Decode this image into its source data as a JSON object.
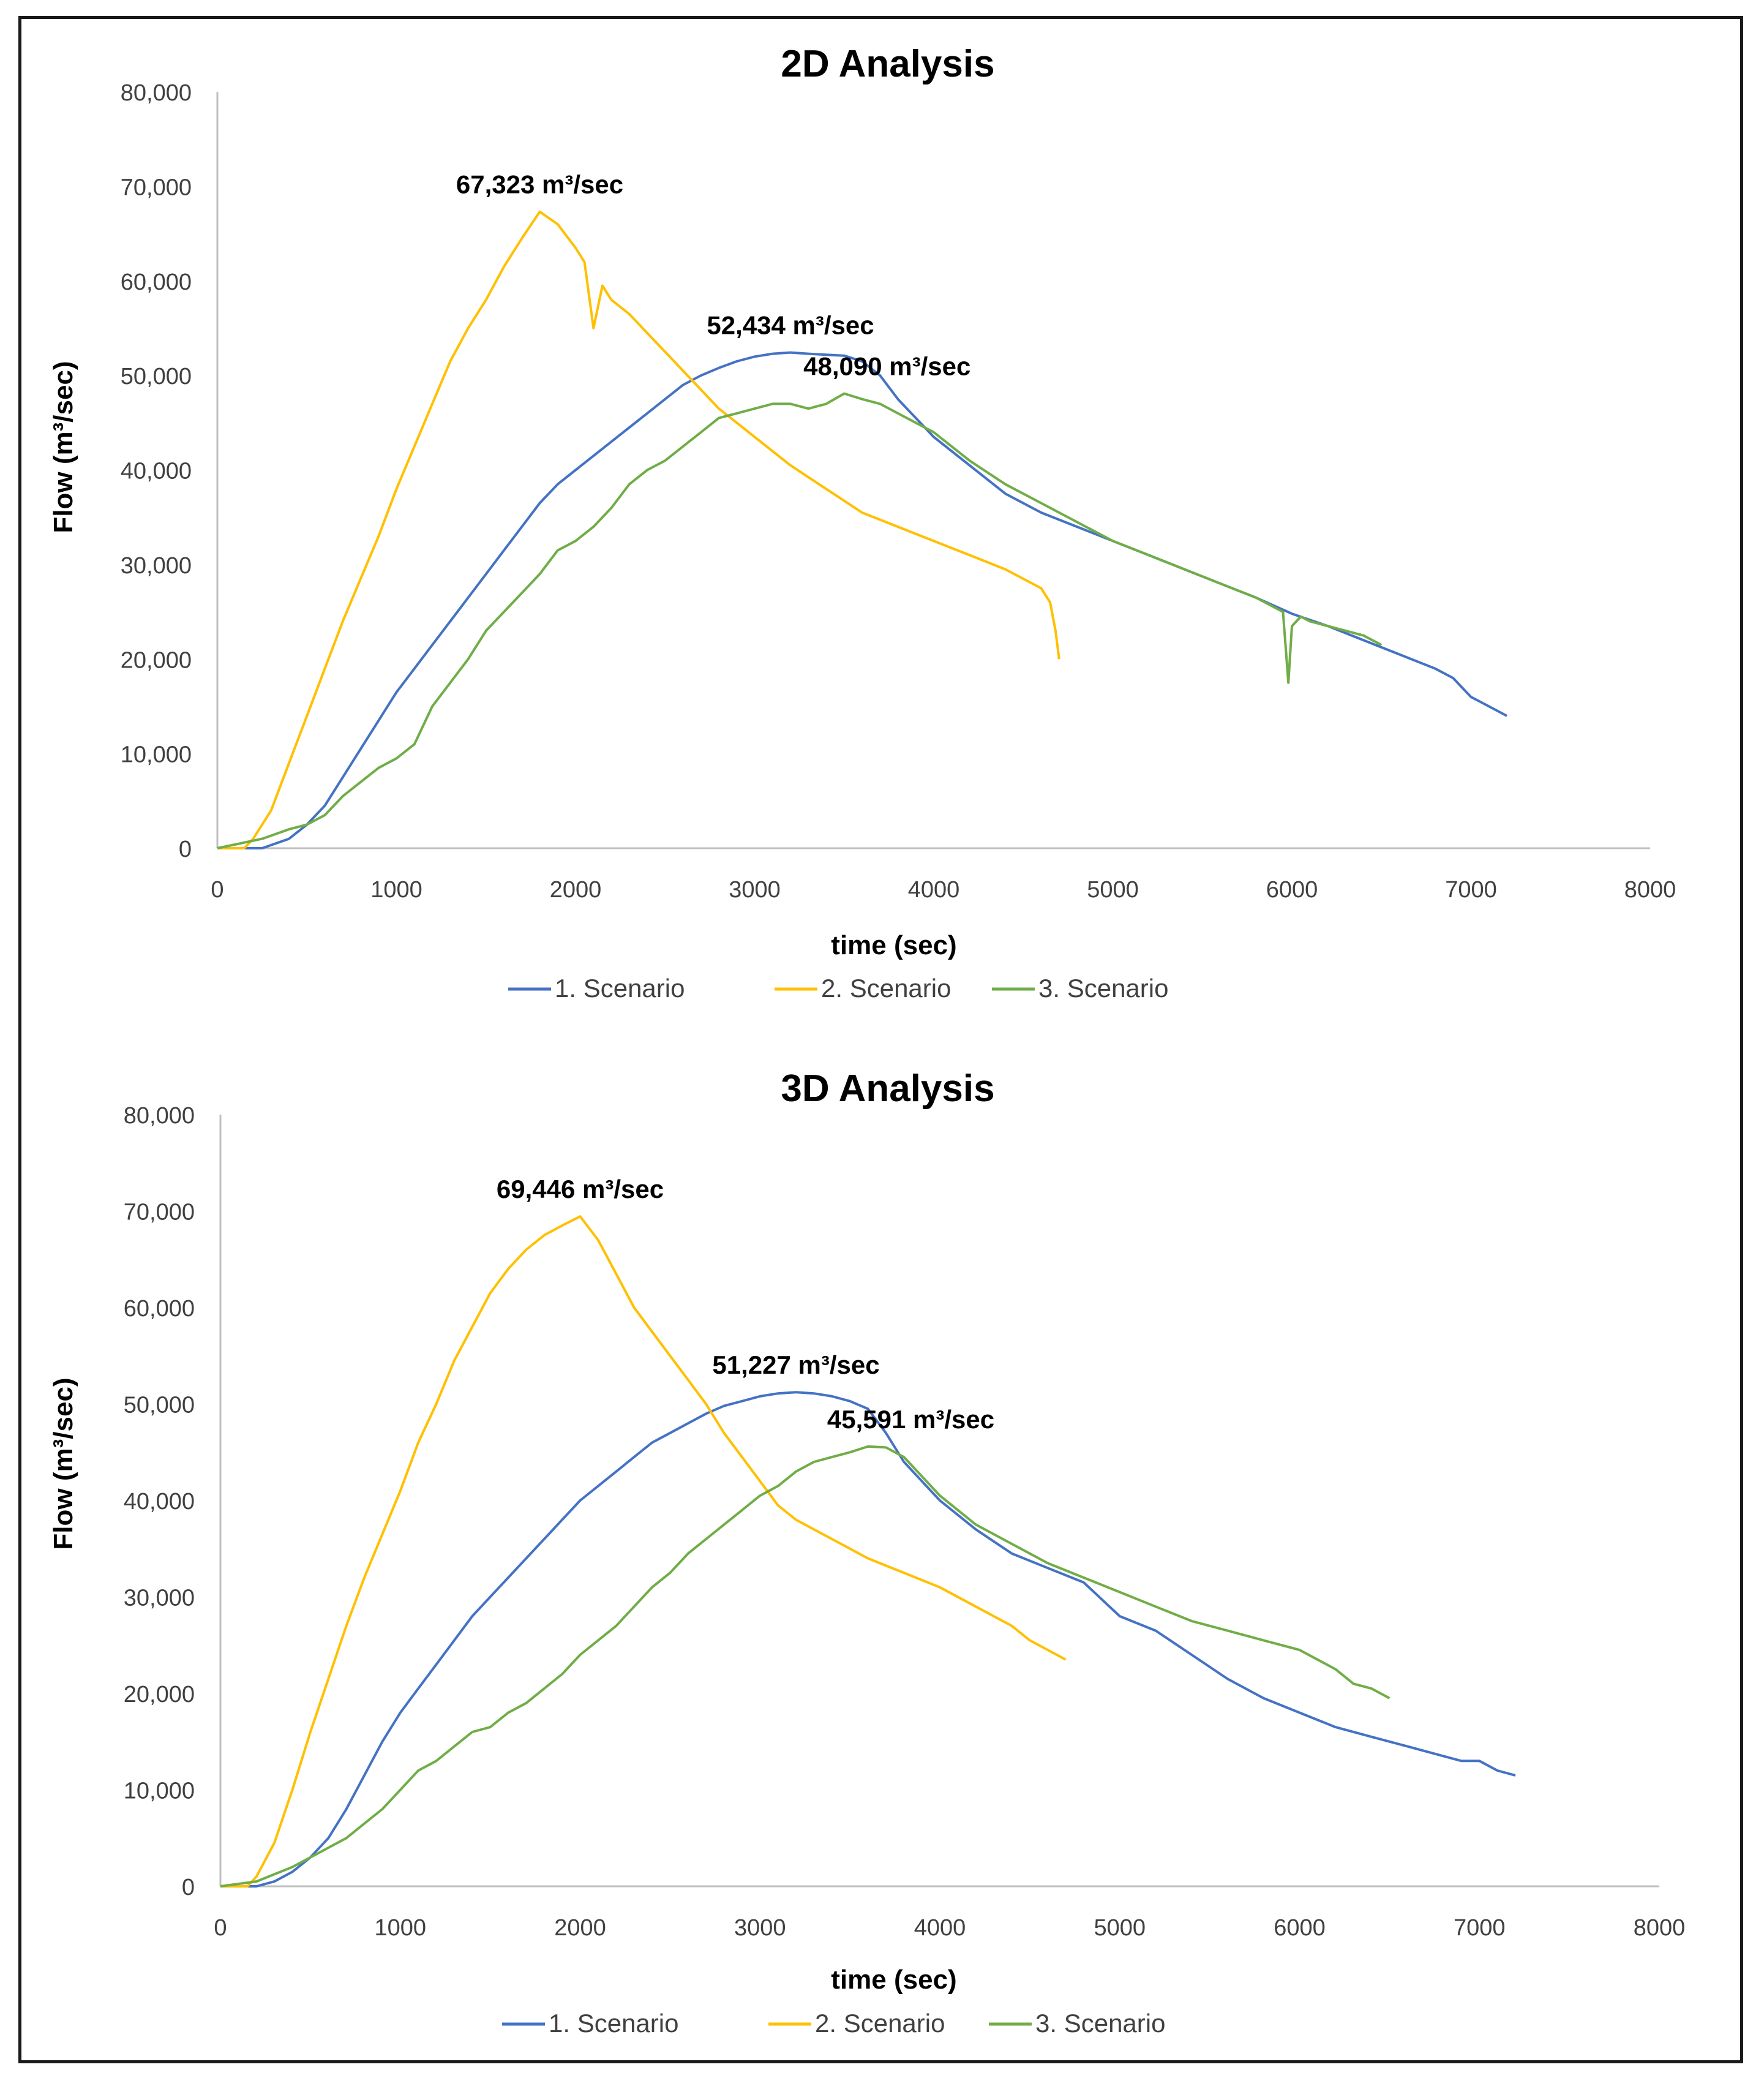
{
  "charts": {
    "count": 2
  },
  "chart_data": [
    {
      "type": "line",
      "title": "2D Analysis",
      "xlabel": "time (sec)",
      "ylabel": "Flow (m³/sec)",
      "xlim": [
        0,
        8000
      ],
      "ylim": [
        0,
        80000
      ],
      "xticks": [
        0,
        1000,
        2000,
        3000,
        4000,
        5000,
        6000,
        7000,
        8000
      ],
      "yticks": [
        0,
        10000,
        20000,
        30000,
        40000,
        50000,
        60000,
        70000,
        80000
      ],
      "ytick_labels": [
        "0",
        "10,000",
        "20,000",
        "30,000",
        "40,000",
        "50,000",
        "60,000",
        "70,000",
        "80,000"
      ],
      "xtick_labels": [
        "0",
        "1000",
        "2000",
        "3000",
        "4000",
        "5000",
        "6000",
        "7000",
        "8000"
      ],
      "grid": false,
      "legend_position": "bottom",
      "series": [
        {
          "name": "1. Scenario",
          "color": "#4472c4",
          "x": [
            0,
            250,
            400,
            500,
            600,
            700,
            800,
            900,
            1000,
            1100,
            1200,
            1300,
            1400,
            1500,
            1600,
            1700,
            1800,
            1900,
            2000,
            2100,
            2200,
            2300,
            2400,
            2500,
            2600,
            2700,
            2800,
            2900,
            3000,
            3100,
            3200,
            3300,
            3400,
            3500,
            3600,
            3700,
            3800,
            3900,
            4000,
            4200,
            4400,
            4600,
            4800,
            5000,
            5200,
            5400,
            5600,
            5800,
            6000,
            6200,
            6400,
            6600,
            6800,
            6900,
            6950,
            7000,
            7100,
            7200
          ],
          "y": [
            0,
            0,
            1000,
            2500,
            4500,
            7500,
            10500,
            13500,
            16500,
            19000,
            21500,
            24000,
            26500,
            29000,
            31500,
            34000,
            36500,
            38500,
            40000,
            41500,
            43000,
            44500,
            46000,
            47500,
            49000,
            50000,
            50800,
            51500,
            52000,
            52300,
            52434,
            52300,
            52200,
            52100,
            51500,
            50000,
            47500,
            45500,
            43500,
            40500,
            37500,
            35500,
            34000,
            32500,
            31000,
            29500,
            28000,
            26500,
            24800,
            23500,
            22000,
            20500,
            19000,
            18000,
            17000,
            16000,
            15000,
            14000
          ]
        },
        {
          "name": "2. Scenario",
          "color": "#ffc000",
          "x": [
            0,
            150,
            200,
            300,
            400,
            500,
            600,
            700,
            800,
            900,
            1000,
            1100,
            1200,
            1300,
            1400,
            1500,
            1600,
            1700,
            1800,
            1900,
            2000,
            2050,
            2100,
            2150,
            2200,
            2300,
            2400,
            2500,
            2600,
            2700,
            2800,
            2900,
            3000,
            3200,
            3400,
            3600,
            3800,
            4000,
            4200,
            4400,
            4600,
            4650,
            4680,
            4700
          ],
          "y": [
            0,
            0,
            1000,
            4000,
            9000,
            14000,
            19000,
            24000,
            28500,
            33000,
            38000,
            42500,
            47000,
            51500,
            55000,
            58000,
            61500,
            64500,
            67323,
            66000,
            63500,
            62000,
            55000,
            59500,
            58000,
            56500,
            54500,
            52500,
            50500,
            48500,
            46500,
            45000,
            43500,
            40500,
            38000,
            35500,
            34000,
            32500,
            31000,
            29500,
            27500,
            26000,
            23000,
            20000
          ]
        },
        {
          "name": "3. Scenario",
          "color": "#70ad47",
          "x": [
            0,
            250,
            400,
            500,
            600,
            700,
            800,
            900,
            1000,
            1100,
            1200,
            1300,
            1400,
            1500,
            1600,
            1700,
            1800,
            1900,
            2000,
            2100,
            2200,
            2300,
            2400,
            2500,
            2600,
            2700,
            2800,
            2900,
            3000,
            3100,
            3200,
            3300,
            3400,
            3500,
            3600,
            3700,
            3800,
            4000,
            4200,
            4400,
            4600,
            4800,
            5000,
            5200,
            5400,
            5600,
            5800,
            5950,
            5980,
            6000,
            6050,
            6100,
            6200,
            6300,
            6400,
            6500
          ],
          "y": [
            0,
            1000,
            2000,
            2500,
            3500,
            5500,
            7000,
            8500,
            9500,
            11000,
            15000,
            17500,
            20000,
            23000,
            25000,
            27000,
            29000,
            31500,
            32500,
            34000,
            36000,
            38500,
            40000,
            41000,
            42500,
            44000,
            45500,
            46000,
            46500,
            47000,
            47000,
            46500,
            47000,
            48090,
            47500,
            47000,
            46000,
            44000,
            41000,
            38500,
            36500,
            34500,
            32500,
            31000,
            29500,
            28000,
            26500,
            25000,
            17500,
            23500,
            24500,
            24000,
            23500,
            23000,
            22500,
            21500
          ]
        }
      ],
      "annotations": [
        {
          "text": "67,323 m³/sec",
          "x": 1800,
          "y": 67323,
          "series": "2. Scenario"
        },
        {
          "text": "52,434 m³/sec",
          "x": 3200,
          "y": 52434,
          "series": "1. Scenario"
        },
        {
          "text": "48,090 m³/sec",
          "x": 3500,
          "y": 48090,
          "series": "3. Scenario"
        }
      ]
    },
    {
      "type": "line",
      "title": "3D Analysis",
      "xlabel": "time (sec)",
      "ylabel": "Flow (m³/sec)",
      "xlim": [
        0,
        8000
      ],
      "ylim": [
        0,
        80000
      ],
      "xticks": [
        0,
        1000,
        2000,
        3000,
        4000,
        5000,
        6000,
        7000,
        8000
      ],
      "yticks": [
        0,
        10000,
        20000,
        30000,
        40000,
        50000,
        60000,
        70000,
        80000
      ],
      "ytick_labels": [
        "0",
        "10,000",
        "20,000",
        "30,000",
        "40,000",
        "50,000",
        "60,000",
        "70,000",
        "80,000"
      ],
      "xtick_labels": [
        "0",
        "1000",
        "2000",
        "3000",
        "4000",
        "5000",
        "6000",
        "7000",
        "8000"
      ],
      "grid": false,
      "legend_position": "bottom",
      "series": [
        {
          "name": "1. Scenario",
          "color": "#4472c4",
          "x": [
            0,
            200,
            300,
            400,
            500,
            600,
            700,
            800,
            900,
            1000,
            1100,
            1200,
            1300,
            1400,
            1500,
            1600,
            1700,
            1800,
            1900,
            2000,
            2100,
            2200,
            2300,
            2400,
            2500,
            2600,
            2700,
            2800,
            2900,
            3000,
            3100,
            3200,
            3300,
            3400,
            3500,
            3600,
            3700,
            3800,
            4000,
            4200,
            4400,
            4600,
            4800,
            5000,
            5200,
            5400,
            5600,
            5800,
            6000,
            6200,
            6400,
            6600,
            6800,
            6900,
            7000,
            7100,
            7200
          ],
          "y": [
            0,
            0,
            500,
            1500,
            3000,
            5000,
            8000,
            11500,
            15000,
            18000,
            20500,
            23000,
            25500,
            28000,
            30000,
            32000,
            34000,
            36000,
            38000,
            40000,
            41500,
            43000,
            44500,
            46000,
            47000,
            48000,
            49000,
            49800,
            50300,
            50800,
            51100,
            51227,
            51100,
            50800,
            50300,
            49500,
            47000,
            44000,
            40000,
            37000,
            34500,
            33000,
            31500,
            28000,
            26500,
            24000,
            21500,
            19500,
            18000,
            16500,
            15500,
            14500,
            13500,
            13000,
            13000,
            12000,
            11500
          ]
        },
        {
          "name": "2. Scenario",
          "color": "#ffc000",
          "x": [
            0,
            150,
            200,
            300,
            400,
            500,
            600,
            700,
            800,
            900,
            1000,
            1100,
            1200,
            1300,
            1400,
            1500,
            1600,
            1700,
            1800,
            1900,
            2000,
            2100,
            2200,
            2300,
            2400,
            2500,
            2600,
            2700,
            2800,
            2900,
            3000,
            3100,
            3200,
            3400,
            3600,
            3800,
            4000,
            4200,
            4400,
            4500,
            4600,
            4700
          ],
          "y": [
            0,
            0,
            1000,
            4500,
            10000,
            16000,
            21500,
            27000,
            32000,
            36500,
            41000,
            46000,
            50000,
            54500,
            58000,
            61500,
            64000,
            66000,
            67500,
            68500,
            69446,
            67000,
            63500,
            60000,
            57500,
            55000,
            52500,
            50000,
            47000,
            44500,
            42000,
            39500,
            38000,
            36000,
            34000,
            32500,
            31000,
            29000,
            27000,
            25500,
            24500,
            23500
          ]
        },
        {
          "name": "3. Scenario",
          "color": "#70ad47",
          "x": [
            0,
            200,
            400,
            500,
            600,
            700,
            800,
            900,
            1000,
            1100,
            1200,
            1300,
            1400,
            1500,
            1600,
            1700,
            1800,
            1900,
            2000,
            2100,
            2200,
            2300,
            2400,
            2500,
            2600,
            2700,
            2800,
            2900,
            3000,
            3100,
            3200,
            3300,
            3400,
            3500,
            3600,
            3700,
            3800,
            4000,
            4200,
            4400,
            4600,
            4800,
            5000,
            5200,
            5400,
            5600,
            5800,
            6000,
            6200,
            6300,
            6400,
            6500
          ],
          "y": [
            0,
            500,
            2000,
            3000,
            4000,
            5000,
            6500,
            8000,
            10000,
            12000,
            13000,
            14500,
            16000,
            16500,
            18000,
            19000,
            20500,
            22000,
            24000,
            25500,
            27000,
            29000,
            31000,
            32500,
            34500,
            36000,
            37500,
            39000,
            40500,
            41500,
            43000,
            44000,
            44500,
            45000,
            45591,
            45500,
            44500,
            40500,
            37500,
            35500,
            33500,
            32000,
            30500,
            29000,
            27500,
            26500,
            25500,
            24500,
            22500,
            21000,
            20500,
            19500
          ]
        }
      ],
      "annotations": [
        {
          "text": "69,446 m³/sec",
          "x": 2000,
          "y": 69446,
          "series": "2. Scenario"
        },
        {
          "text": "51,227 m³/sec",
          "x": 3200,
          "y": 51227,
          "series": "1. Scenario"
        },
        {
          "text": "45,591 m³/sec",
          "x": 3600,
          "y": 45591,
          "series": "3. Scenario"
        }
      ]
    }
  ]
}
